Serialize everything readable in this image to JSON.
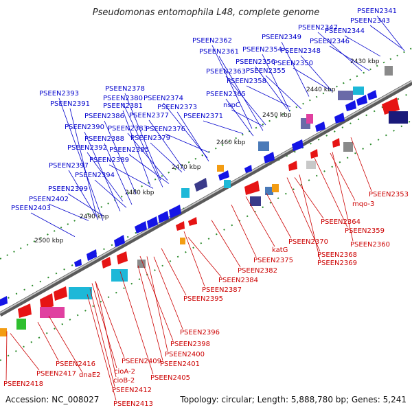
{
  "title": "Pseudomonas entomophila L48, complete genome",
  "accession": "Accession: NC_008027",
  "topology": "Topology: circular; Length: 5,888,780 bp; Genes: 5,241",
  "colors": {
    "forward_label": "#0000cc",
    "reverse_label": "#cc0000",
    "forward_gene": "#1414e6",
    "reverse_gene": "#e61414",
    "backbone": "#777777",
    "ticks": "#2a8a2a"
  },
  "kbp_markers": [
    "2430 kbp",
    "2440 kbp",
    "2450 kbp",
    "2460 kbp",
    "2470 kbp",
    "2480 kbp",
    "2490 kbp",
    "2500 kbp"
  ],
  "forward_labels": [
    "PSEEN2341",
    "PSEEN2343",
    "PSEEN2344",
    "PSEEN2346",
    "PSEEN2347",
    "PSEEN2349",
    "PSEEN2348",
    "PSEEN2350",
    "PSEEN2362",
    "PSEEN2361",
    "PSEEN2354",
    "PSEEN2356",
    "PSEEN2355",
    "PSEEN2363",
    "PSEEN2358",
    "PSEEN2365",
    "nspC",
    "PSEEN2378",
    "PSEEN2380",
    "PSEEN2374",
    "PSEEN2381",
    "PSEEN2373",
    "PSEEN2377",
    "PSEEN2371",
    "PSEEN2393",
    "PSEEN2391",
    "PSEEN2386",
    "PSEEN2390",
    "PSEEN2383",
    "PSEEN2376",
    "PSEEN2388",
    "PSEEN2379",
    "PSEEN2392",
    "PSEEN2385",
    "PSEEN2389",
    "PSEEN2397",
    "PSEEN2394",
    "PSEEN2399",
    "PSEEN2402",
    "PSEEN2403"
  ],
  "reverse_labels": [
    "PSEEN2353",
    "mqo-3",
    "PSEEN2364",
    "PSEEN2359",
    "PSEEN2360",
    "PSEEN2370",
    "katG",
    "PSEEN2368",
    "PSEEN2369",
    "PSEEN2375",
    "PSEEN2382",
    "PSEEN2384",
    "PSEEN2387",
    "PSEEN2395",
    "PSEEN2396",
    "PSEEN2398",
    "PSEEN2400",
    "PSEEN2401",
    "PSEEN2409",
    "PSEEN2405",
    "PSEEN2416",
    "cioA-2",
    "PSEEN2417",
    "dnaE2",
    "cioB-2",
    "PSEEN2412",
    "PSEEN2413",
    "PSEEN2418"
  ]
}
